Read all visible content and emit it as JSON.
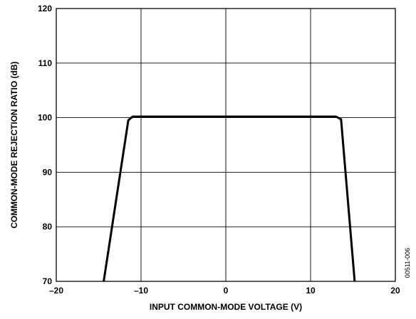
{
  "figure_id": "00511-006",
  "chart_data": {
    "type": "line",
    "xlabel": "INPUT COMMON-MODE VOLTAGE (V)",
    "ylabel": "COMMON-MODE REJECTION RATIO (dB)",
    "xlim": [
      -20,
      20
    ],
    "ylim": [
      70,
      120
    ],
    "x_ticks": [
      -20,
      -10,
      0,
      10,
      20
    ],
    "x_tick_labels": [
      "–20",
      "–10",
      "0",
      "10",
      "20"
    ],
    "y_ticks": [
      70,
      80,
      90,
      100,
      110,
      120
    ],
    "y_tick_labels": [
      "70",
      "80",
      "90",
      "100",
      "110",
      "120"
    ],
    "grid": true,
    "series": [
      {
        "color": "#000000",
        "x": [
          -14.4,
          -11.5,
          -11.0,
          0,
          13.0,
          13.6,
          15.2
        ],
        "y": [
          70,
          99.5,
          100.2,
          100.2,
          100.2,
          99.7,
          70
        ]
      }
    ]
  }
}
